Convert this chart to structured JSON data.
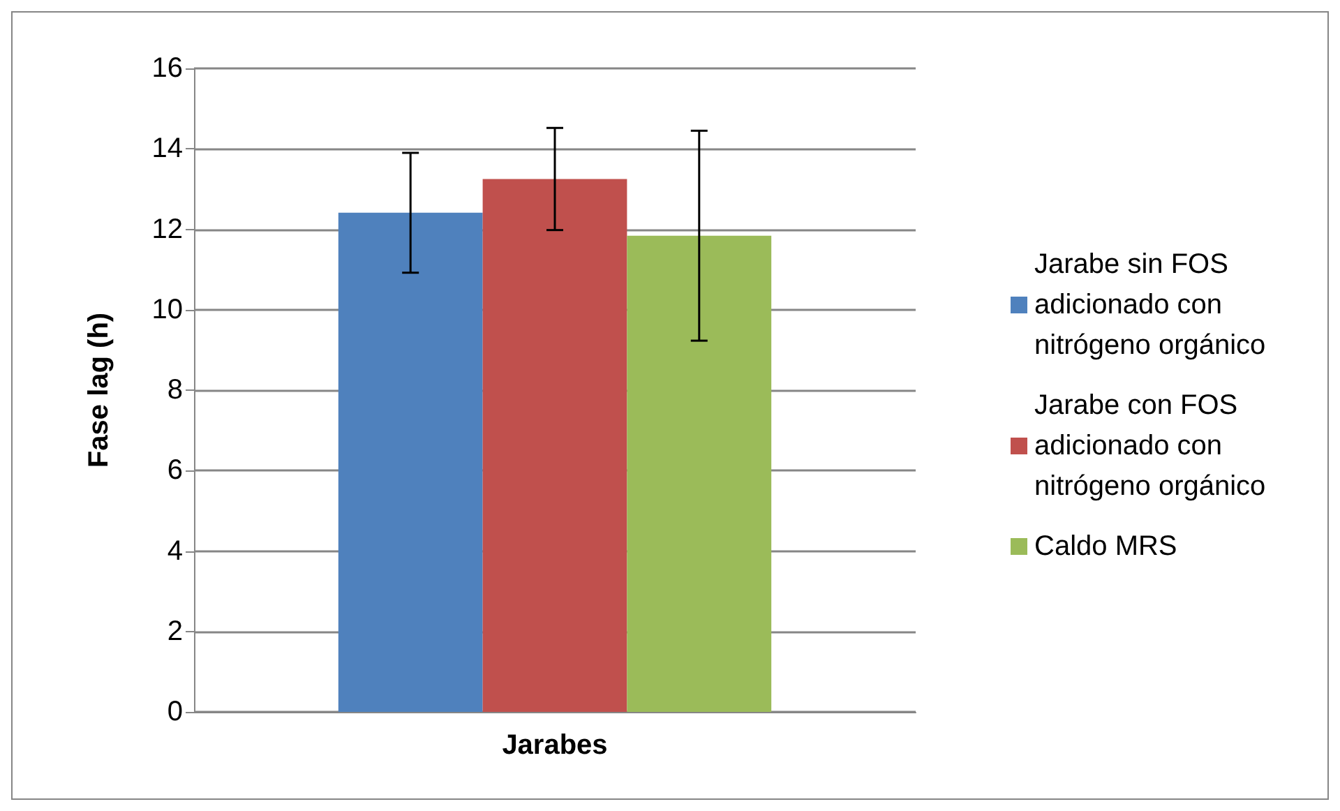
{
  "chart_data": {
    "type": "bar",
    "ylabel": "Fase lag (h)",
    "categories": [
      "Jarabes"
    ],
    "series": [
      {
        "name": "Jarabe sin FOS adicionado con nitrógeno orgánico",
        "color": "#4f81bd",
        "values": [
          12.41
        ],
        "errors": [
          1.49
        ]
      },
      {
        "name": "Jarabe con FOS adicionado con nitrógeno orgánico",
        "color": "#c0504d",
        "values": [
          13.25
        ],
        "errors": [
          1.27
        ]
      },
      {
        "name": "Caldo MRS",
        "color": "#9bbb59",
        "values": [
          11.84
        ],
        "errors": [
          2.61
        ]
      }
    ],
    "ylim": [
      0,
      16
    ],
    "yticks": [
      0,
      2,
      4,
      6,
      8,
      10,
      12,
      14,
      16
    ],
    "grid": "y",
    "legend": "right"
  }
}
